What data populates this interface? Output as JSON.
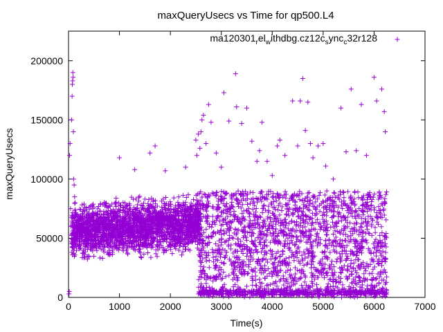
{
  "chart_data": {
    "type": "scatter",
    "title": "maxQueryUsecs vs Time for qp500.L4",
    "xlabel": "Time(s)",
    "ylabel": "maxQueryUsecs",
    "xlim": [
      0,
      7000
    ],
    "ylim": [
      0,
      225000
    ],
    "x_ticks": [
      "0",
      "1000",
      "2000",
      "3000",
      "4000",
      "5000",
      "6000",
      "7000"
    ],
    "y_ticks": [
      "0",
      "50000",
      "100000",
      "150000",
      "200000"
    ],
    "grid": false,
    "legend_position": "top-right",
    "series": [
      {
        "name": "ma120301_rel_withdbg.cz12c_sync_c32r128",
        "name_display": {
          "a": "ma120301",
          "b": "r",
          "c": "el",
          "d": "w",
          "e": "ithdbg.cz12c",
          "f": "s",
          "g": "ync",
          "h": "c",
          "i": "32r128"
        },
        "color": "#9400d3",
        "marker": "+",
        "points": [
          [
            10,
            3000
          ],
          [
            15,
            5000
          ],
          [
            20,
            120000
          ],
          [
            30,
            130000
          ],
          [
            40,
            75000
          ],
          [
            45,
            60000
          ],
          [
            60,
            150000
          ],
          [
            70,
            170000
          ],
          [
            75,
            180000
          ],
          [
            80,
            183000
          ],
          [
            85,
            190000
          ],
          [
            90,
            186000
          ],
          [
            95,
            140000
          ],
          [
            100,
            100000
          ],
          [
            110,
            95000
          ],
          [
            120,
            85000
          ],
          [
            130,
            80000
          ],
          [
            140,
            70000
          ],
          [
            180,
            65000
          ],
          [
            250,
            62000
          ],
          [
            300,
            58000
          ],
          [
            400,
            55000
          ],
          [
            500,
            52000
          ],
          [
            600,
            60000
          ],
          [
            700,
            57000
          ],
          [
            800,
            63000
          ],
          [
            900,
            54000
          ],
          [
            1000,
            118000
          ],
          [
            1100,
            66000
          ],
          [
            1200,
            61000
          ],
          [
            1300,
            108000
          ],
          [
            1400,
            58000
          ],
          [
            1500,
            62000
          ],
          [
            1600,
            122000
          ],
          [
            1700,
            128000
          ],
          [
            1800,
            70000
          ],
          [
            1900,
            107000
          ],
          [
            2000,
            64000
          ],
          [
            2100,
            60000
          ],
          [
            2200,
            58000
          ],
          [
            2300,
            110000
          ],
          [
            2400,
            62000
          ],
          [
            2450,
            55000
          ],
          [
            2500,
            133000
          ],
          [
            2520,
            120000
          ],
          [
            2550,
            138000
          ],
          [
            2580,
            126000
          ],
          [
            2600,
            140000
          ],
          [
            2620,
            150000
          ],
          [
            2650,
            154000
          ],
          [
            2700,
            130000
          ],
          [
            2750,
            163000
          ],
          [
            2800,
            148000
          ],
          [
            2900,
            122000
          ],
          [
            3000,
            110000
          ],
          [
            3050,
            173000
          ],
          [
            3150,
            149000
          ],
          [
            3280,
            189000
          ],
          [
            3300,
            161000
          ],
          [
            3400,
            147000
          ],
          [
            3500,
            160000
          ],
          [
            3600,
            132000
          ],
          [
            3700,
            115000
          ],
          [
            3750,
            124000
          ],
          [
            3800,
            148000
          ],
          [
            3900,
            115000
          ],
          [
            4000,
            103000
          ],
          [
            4100,
            128000
          ],
          [
            4150,
            133000
          ],
          [
            4250,
            120000
          ],
          [
            4400,
            166000
          ],
          [
            4500,
            128000
          ],
          [
            4550,
            166000
          ],
          [
            4600,
            185000
          ],
          [
            4650,
            141000
          ],
          [
            4700,
            165000
          ],
          [
            4750,
            130000
          ],
          [
            4800,
            118000
          ],
          [
            4900,
            128000
          ],
          [
            5000,
            130000
          ],
          [
            5050,
            111000
          ],
          [
            5200,
            100000
          ],
          [
            5350,
            160000
          ],
          [
            5450,
            123000
          ],
          [
            5550,
            176000
          ],
          [
            5650,
            124000
          ],
          [
            5750,
            163000
          ],
          [
            5850,
            120000
          ],
          [
            6000,
            186000
          ],
          [
            6050,
            166000
          ],
          [
            6150,
            176000
          ],
          [
            6200,
            157000
          ],
          [
            6220,
            140000
          ]
        ]
      }
    ],
    "dense_regions": [
      {
        "x_range": [
          60,
          2600
        ],
        "y_band": [
          30000,
          95000
        ],
        "description": "dense cloud of points"
      },
      {
        "x_range": [
          2550,
          6250
        ],
        "y_band": [
          0,
          90000
        ],
        "description": "dense cloud of points"
      },
      {
        "x_range": [
          2550,
          6250
        ],
        "y_band": [
          2000,
          6000
        ],
        "description": "dense baseline of points"
      }
    ]
  }
}
